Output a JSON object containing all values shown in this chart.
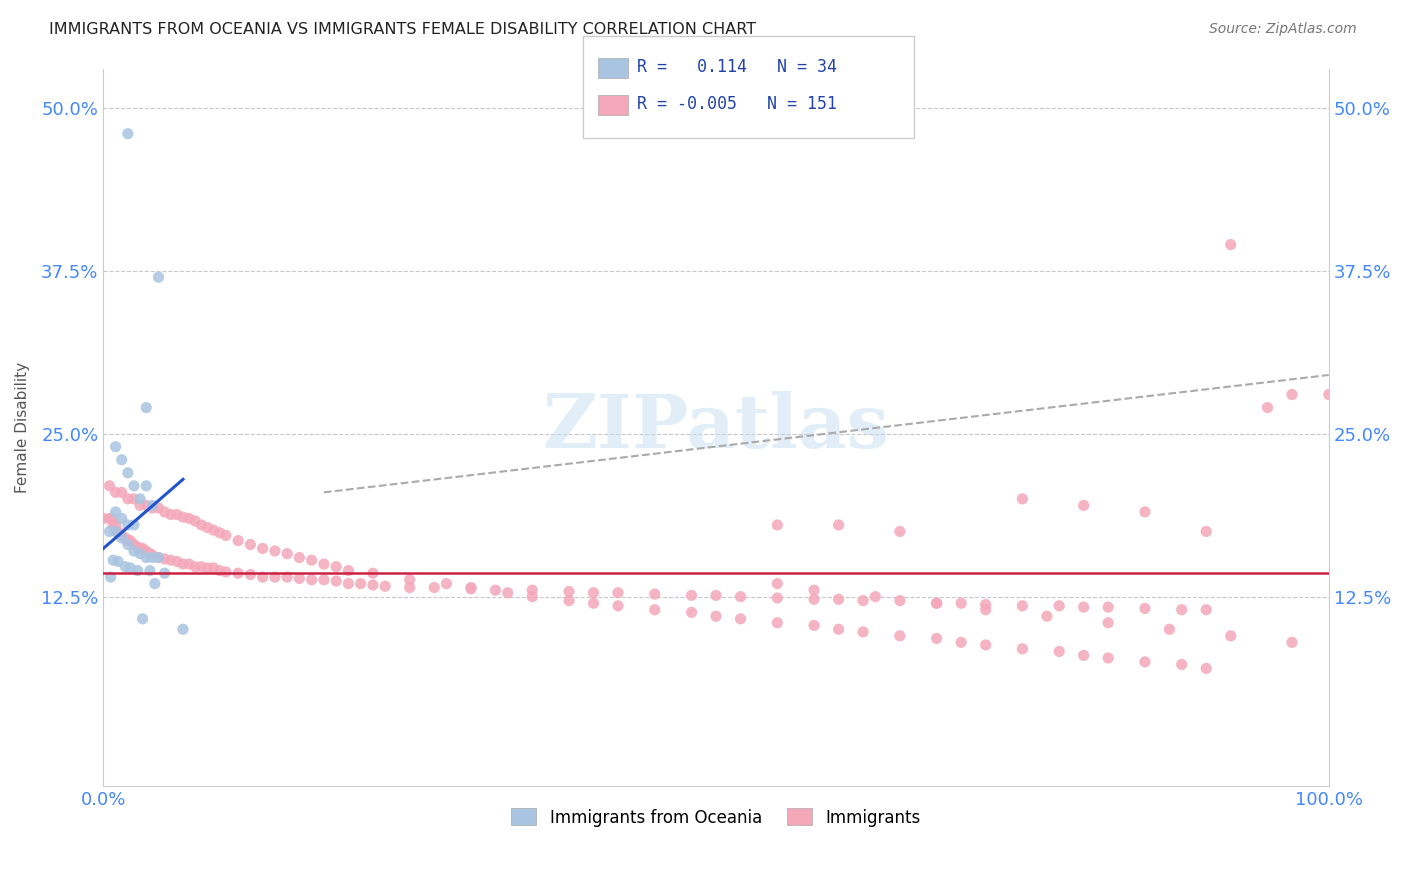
{
  "title": "IMMIGRANTS FROM OCEANIA VS IMMIGRANTS FEMALE DISABILITY CORRELATION CHART",
  "source": "Source: ZipAtlas.com",
  "ylabel": "Female Disability",
  "yticks": [
    0.0,
    0.125,
    0.25,
    0.375,
    0.5
  ],
  "ytick_labels": [
    "",
    "12.5%",
    "25.0%",
    "37.5%",
    "50.0%"
  ],
  "blue_color": "#a8c4e0",
  "pink_color": "#f4a7b9",
  "blue_line_color": "#2255cc",
  "pink_line_color": "#cc2244",
  "dashed_line_color": "#aaaaaa",
  "watermark": "ZIPatlas",
  "blue_scatter_x": [
    0.02,
    0.045,
    0.035,
    0.01,
    0.015,
    0.02,
    0.025,
    0.03,
    0.035,
    0.04,
    0.01,
    0.015,
    0.02,
    0.025,
    0.005,
    0.01,
    0.015,
    0.02,
    0.025,
    0.03,
    0.035,
    0.04,
    0.045,
    0.008,
    0.012,
    0.018,
    0.022,
    0.028,
    0.038,
    0.05,
    0.006,
    0.042,
    0.065,
    0.032
  ],
  "blue_scatter_y": [
    0.48,
    0.37,
    0.27,
    0.24,
    0.23,
    0.22,
    0.21,
    0.2,
    0.21,
    0.195,
    0.19,
    0.185,
    0.18,
    0.18,
    0.175,
    0.175,
    0.17,
    0.165,
    0.16,
    0.158,
    0.155,
    0.155,
    0.155,
    0.153,
    0.152,
    0.148,
    0.147,
    0.145,
    0.145,
    0.143,
    0.14,
    0.135,
    0.1,
    0.108
  ],
  "pink_scatter_x": [
    0.0,
    0.005,
    0.007,
    0.008,
    0.01,
    0.012,
    0.015,
    0.018,
    0.02,
    0.022,
    0.025,
    0.028,
    0.03,
    0.032,
    0.035,
    0.038,
    0.04,
    0.045,
    0.05,
    0.055,
    0.06,
    0.065,
    0.07,
    0.075,
    0.08,
    0.085,
    0.09,
    0.095,
    0.1,
    0.11,
    0.12,
    0.13,
    0.14,
    0.15,
    0.16,
    0.17,
    0.18,
    0.19,
    0.2,
    0.21,
    0.22,
    0.23,
    0.25,
    0.27,
    0.3,
    0.32,
    0.35,
    0.38,
    0.4,
    0.42,
    0.45,
    0.48,
    0.5,
    0.52,
    0.55,
    0.58,
    0.6,
    0.62,
    0.65,
    0.68,
    0.7,
    0.72,
    0.75,
    0.78,
    0.8,
    0.82,
    0.85,
    0.88,
    0.9,
    0.005,
    0.01,
    0.015,
    0.02,
    0.025,
    0.03,
    0.035,
    0.04,
    0.045,
    0.05,
    0.055,
    0.06,
    0.065,
    0.07,
    0.075,
    0.08,
    0.085,
    0.09,
    0.095,
    0.1,
    0.11,
    0.12,
    0.13,
    0.14,
    0.15,
    0.16,
    0.17,
    0.18,
    0.19,
    0.2,
    0.22,
    0.25,
    0.28,
    0.3,
    0.33,
    0.35,
    0.38,
    0.4,
    0.42,
    0.45,
    0.48,
    0.5,
    0.52,
    0.55,
    0.58,
    0.6,
    0.62,
    0.65,
    0.68,
    0.7,
    0.72,
    0.75,
    0.78,
    0.8,
    0.82,
    0.85,
    0.88,
    0.9,
    0.92,
    0.95,
    0.97,
    1.0,
    0.75,
    0.8,
    0.85,
    0.9,
    0.55,
    0.6,
    0.65,
    0.55,
    0.58,
    0.63,
    0.68,
    0.72,
    0.77,
    0.82,
    0.87,
    0.92,
    0.97
  ],
  "pink_scatter_y": [
    0.185,
    0.185,
    0.185,
    0.18,
    0.18,
    0.175,
    0.172,
    0.17,
    0.168,
    0.168,
    0.165,
    0.163,
    0.162,
    0.162,
    0.16,
    0.158,
    0.157,
    0.155,
    0.154,
    0.153,
    0.152,
    0.15,
    0.15,
    0.148,
    0.148,
    0.147,
    0.147,
    0.145,
    0.144,
    0.143,
    0.142,
    0.14,
    0.14,
    0.14,
    0.139,
    0.138,
    0.138,
    0.137,
    0.135,
    0.135,
    0.134,
    0.133,
    0.132,
    0.132,
    0.131,
    0.13,
    0.13,
    0.129,
    0.128,
    0.128,
    0.127,
    0.126,
    0.126,
    0.125,
    0.124,
    0.123,
    0.123,
    0.122,
    0.122,
    0.12,
    0.12,
    0.119,
    0.118,
    0.118,
    0.117,
    0.117,
    0.116,
    0.115,
    0.115,
    0.21,
    0.205,
    0.205,
    0.2,
    0.2,
    0.195,
    0.195,
    0.193,
    0.193,
    0.19,
    0.188,
    0.188,
    0.186,
    0.185,
    0.183,
    0.18,
    0.178,
    0.176,
    0.174,
    0.172,
    0.168,
    0.165,
    0.162,
    0.16,
    0.158,
    0.155,
    0.153,
    0.15,
    0.148,
    0.145,
    0.143,
    0.138,
    0.135,
    0.132,
    0.128,
    0.125,
    0.122,
    0.12,
    0.118,
    0.115,
    0.113,
    0.11,
    0.108,
    0.105,
    0.103,
    0.1,
    0.098,
    0.095,
    0.093,
    0.09,
    0.088,
    0.085,
    0.083,
    0.08,
    0.078,
    0.075,
    0.073,
    0.07,
    0.395,
    0.27,
    0.28,
    0.28,
    0.2,
    0.195,
    0.19,
    0.175,
    0.18,
    0.18,
    0.175,
    0.135,
    0.13,
    0.125,
    0.12,
    0.115,
    0.11,
    0.105,
    0.1,
    0.095,
    0.09
  ],
  "blue_trend_x": [
    0.0,
    0.065
  ],
  "blue_trend_y": [
    0.162,
    0.215
  ],
  "pink_trend_x": [
    0.0,
    1.0
  ],
  "pink_trend_y": [
    0.143,
    0.143
  ],
  "dashed_trend_x": [
    0.18,
    1.0
  ],
  "dashed_trend_y": [
    0.205,
    0.295
  ],
  "xlim": [
    0.0,
    1.0
  ],
  "ylim": [
    -0.02,
    0.53
  ],
  "bg_color": "#ffffff",
  "grid_color": "#c8c8c8"
}
